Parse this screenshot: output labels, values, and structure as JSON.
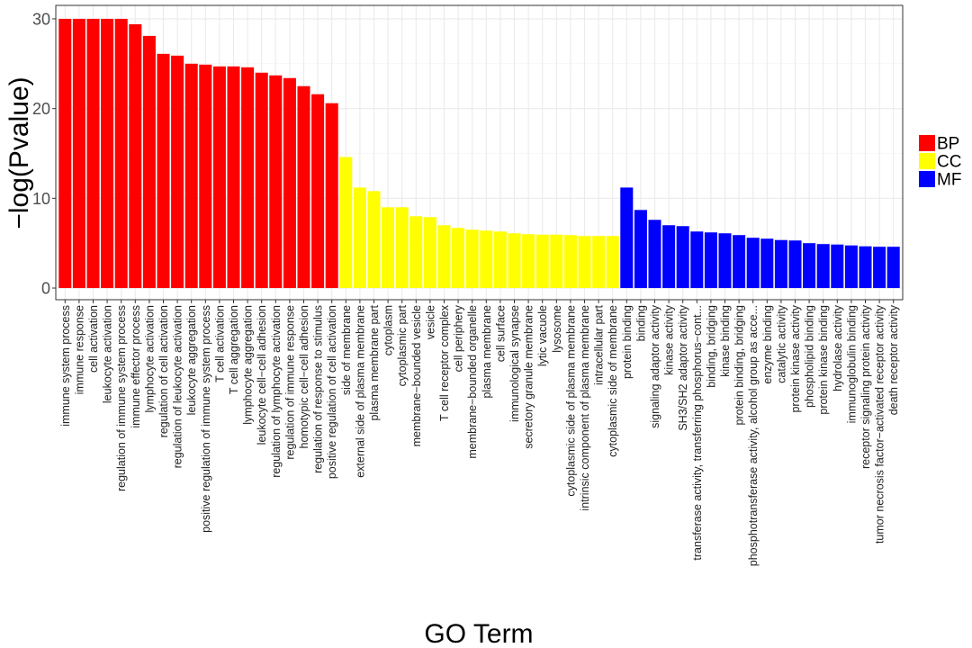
{
  "chart_data": {
    "type": "bar",
    "title": "",
    "xlabel": "GO Term",
    "ylabel": "−log(Pvalue)",
    "ylim": [
      -1.3,
      31.5
    ],
    "yticks": [
      0,
      10,
      20,
      30
    ],
    "grid": true,
    "legend_position": "right",
    "colors": {
      "BP": "#ff0000",
      "CC": "#ffff00",
      "MF": "#0000ff"
    },
    "legend": [
      "BP",
      "CC",
      "MF"
    ],
    "bars": [
      {
        "label": "immune system process",
        "value": 30,
        "group": "BP"
      },
      {
        "label": "immune response",
        "value": 30,
        "group": "BP"
      },
      {
        "label": "cell activation",
        "value": 30,
        "group": "BP"
      },
      {
        "label": "leukocyte activation",
        "value": 30,
        "group": "BP"
      },
      {
        "label": "regulation of immune system process",
        "value": 30,
        "group": "BP"
      },
      {
        "label": "immune effector process",
        "value": 29.4,
        "group": "BP"
      },
      {
        "label": "lymphocyte activation",
        "value": 28.1,
        "group": "BP"
      },
      {
        "label": "regulation of cell activation",
        "value": 26.1,
        "group": "BP"
      },
      {
        "label": "regulation of leukocyte activation",
        "value": 25.9,
        "group": "BP"
      },
      {
        "label": "leukocyte aggregation",
        "value": 25,
        "group": "BP"
      },
      {
        "label": "positive regulation of immune system process",
        "value": 24.9,
        "group": "BP"
      },
      {
        "label": "T cell activation",
        "value": 24.7,
        "group": "BP"
      },
      {
        "label": "T cell aggregation",
        "value": 24.7,
        "group": "BP"
      },
      {
        "label": "lymphocyte aggregation",
        "value": 24.6,
        "group": "BP"
      },
      {
        "label": "leukocyte cell−cell adhesion",
        "value": 24,
        "group": "BP"
      },
      {
        "label": "regulation of lymphocyte activation",
        "value": 23.7,
        "group": "BP"
      },
      {
        "label": "regulation of immune response",
        "value": 23.4,
        "group": "BP"
      },
      {
        "label": "homotypic cell−cell adhesion",
        "value": 22.5,
        "group": "BP"
      },
      {
        "label": "regulation of response to stimulus",
        "value": 21.6,
        "group": "BP"
      },
      {
        "label": "positive regulation of cell activation",
        "value": 20.6,
        "group": "BP"
      },
      {
        "label": "side of membrane",
        "value": 14.6,
        "group": "CC"
      },
      {
        "label": "external side of plasma membrane",
        "value": 11.2,
        "group": "CC"
      },
      {
        "label": "plasma membrane part",
        "value": 10.8,
        "group": "CC"
      },
      {
        "label": "cytoplasm",
        "value": 9,
        "group": "CC"
      },
      {
        "label": "cytoplasmic part",
        "value": 9,
        "group": "CC"
      },
      {
        "label": "membrane−bounded vesicle",
        "value": 8,
        "group": "CC"
      },
      {
        "label": "vesicle",
        "value": 7.9,
        "group": "CC"
      },
      {
        "label": "T cell receptor complex",
        "value": 7,
        "group": "CC"
      },
      {
        "label": "cell periphery",
        "value": 6.7,
        "group": "CC"
      },
      {
        "label": "membrane−bounded organelle",
        "value": 6.5,
        "group": "CC"
      },
      {
        "label": "plasma membrane",
        "value": 6.4,
        "group": "CC"
      },
      {
        "label": "cell surface",
        "value": 6.3,
        "group": "CC"
      },
      {
        "label": "immunological synapse",
        "value": 6.1,
        "group": "CC"
      },
      {
        "label": "secretory granule membrane",
        "value": 6,
        "group": "CC"
      },
      {
        "label": "lytic vacuole",
        "value": 5.95,
        "group": "CC"
      },
      {
        "label": "lysosome",
        "value": 5.95,
        "group": "CC"
      },
      {
        "label": "cytoplasmic side of plasma membrane",
        "value": 5.9,
        "group": "CC"
      },
      {
        "label": "intrinsic component of plasma membrane",
        "value": 5.8,
        "group": "CC"
      },
      {
        "label": "intracellular part",
        "value": 5.8,
        "group": "CC"
      },
      {
        "label": "cytoplasmic side of membrane",
        "value": 5.8,
        "group": "CC"
      },
      {
        "label": "protein binding",
        "value": 11.2,
        "group": "MF"
      },
      {
        "label": "binding",
        "value": 8.7,
        "group": "MF"
      },
      {
        "label": "signaling adaptor activity",
        "value": 7.6,
        "group": "MF"
      },
      {
        "label": "kinase activity",
        "value": 7,
        "group": "MF"
      },
      {
        "label": "SH3/SH2 adaptor activity",
        "value": 6.9,
        "group": "MF"
      },
      {
        "label": "transferase activity, transferring phosphorus−cont...",
        "value": 6.3,
        "group": "MF"
      },
      {
        "label": "binding, bridging",
        "value": 6.2,
        "group": "MF"
      },
      {
        "label": "kinase binding",
        "value": 6.1,
        "group": "MF"
      },
      {
        "label": "protein binding, bridging",
        "value": 5.9,
        "group": "MF"
      },
      {
        "label": "phosphotransferase activity, alcohol group as acce...",
        "value": 5.6,
        "group": "MF"
      },
      {
        "label": "enzyme binding",
        "value": 5.5,
        "group": "MF"
      },
      {
        "label": "catalytic activity",
        "value": 5.35,
        "group": "MF"
      },
      {
        "label": "protein kinase activity",
        "value": 5.3,
        "group": "MF"
      },
      {
        "label": "phospholipid binding",
        "value": 5,
        "group": "MF"
      },
      {
        "label": "protein kinase binding",
        "value": 4.9,
        "group": "MF"
      },
      {
        "label": "hydrolase activity",
        "value": 4.85,
        "group": "MF"
      },
      {
        "label": "immunoglobulin binding",
        "value": 4.75,
        "group": "MF"
      },
      {
        "label": "receptor signaling protein activity",
        "value": 4.65,
        "group": "MF"
      },
      {
        "label": "tumor necrosis factor−activated receptor activity",
        "value": 4.6,
        "group": "MF"
      },
      {
        "label": "death receptor activity",
        "value": 4.6,
        "group": "MF"
      }
    ]
  }
}
